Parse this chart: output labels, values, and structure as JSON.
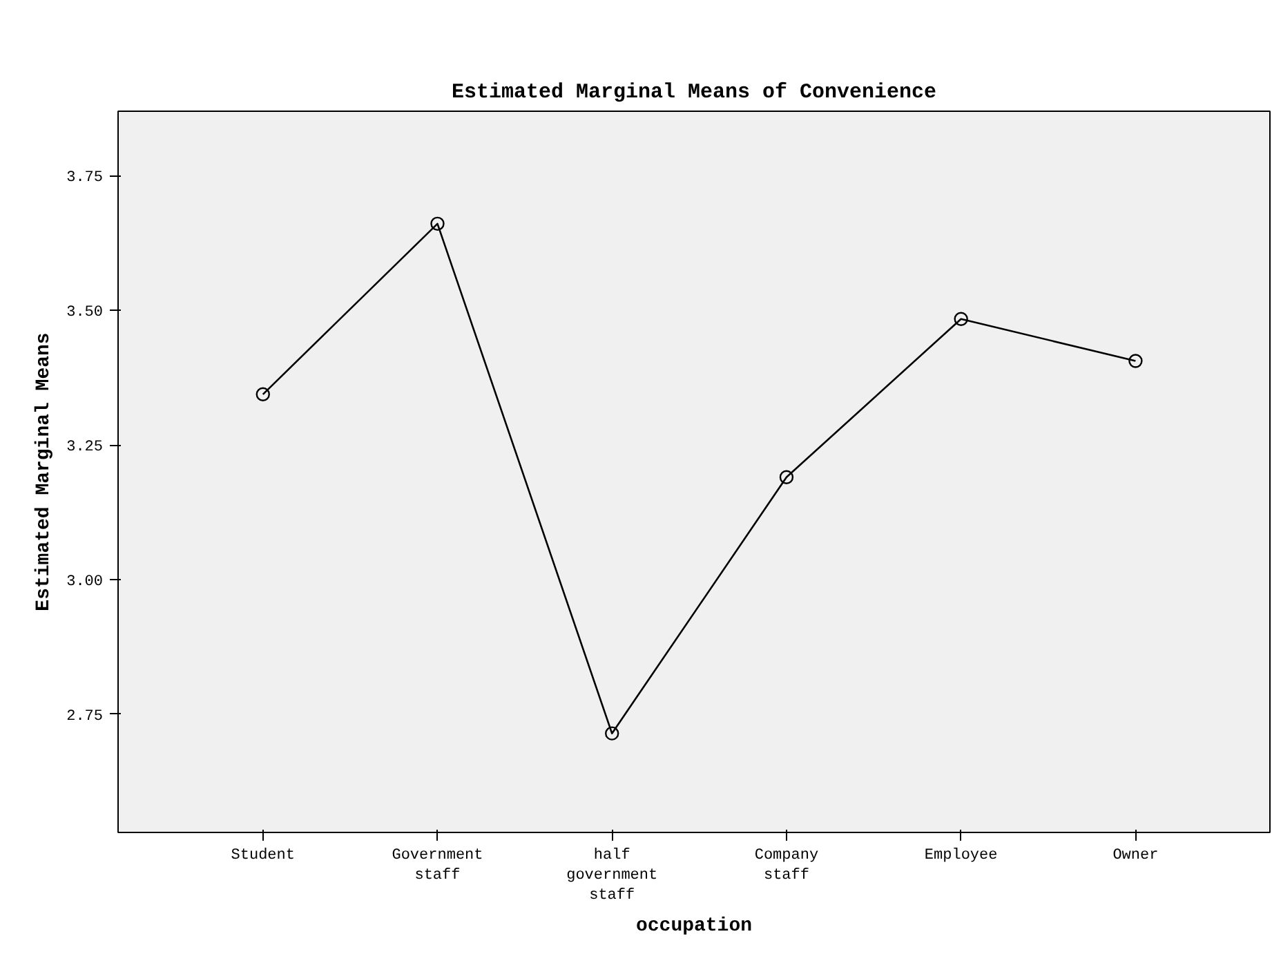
{
  "chart_data": {
    "type": "line",
    "title": "Estimated Marginal Means of Convenience",
    "xlabel": "occupation",
    "ylabel": "Estimated Marginal Means",
    "categories": [
      "Student",
      "Government staff",
      "half government staff",
      "Company staff",
      "Employee",
      "Owner"
    ],
    "series": [
      {
        "color": "#000000",
        "values": [
          3.344,
          3.661,
          2.714,
          3.19,
          3.484,
          3.406
        ]
      }
    ],
    "ylim": [
      2.53,
      3.87
    ],
    "yticks": [
      {
        "value": 2.75,
        "label": "2.75"
      },
      {
        "value": 3.0,
        "label": "3.00"
      },
      {
        "value": 3.25,
        "label": "3.25"
      },
      {
        "value": 3.5,
        "label": "3.50"
      },
      {
        "value": 3.75,
        "label": "3.75"
      }
    ],
    "marker": "circle",
    "line_style": "solid"
  }
}
